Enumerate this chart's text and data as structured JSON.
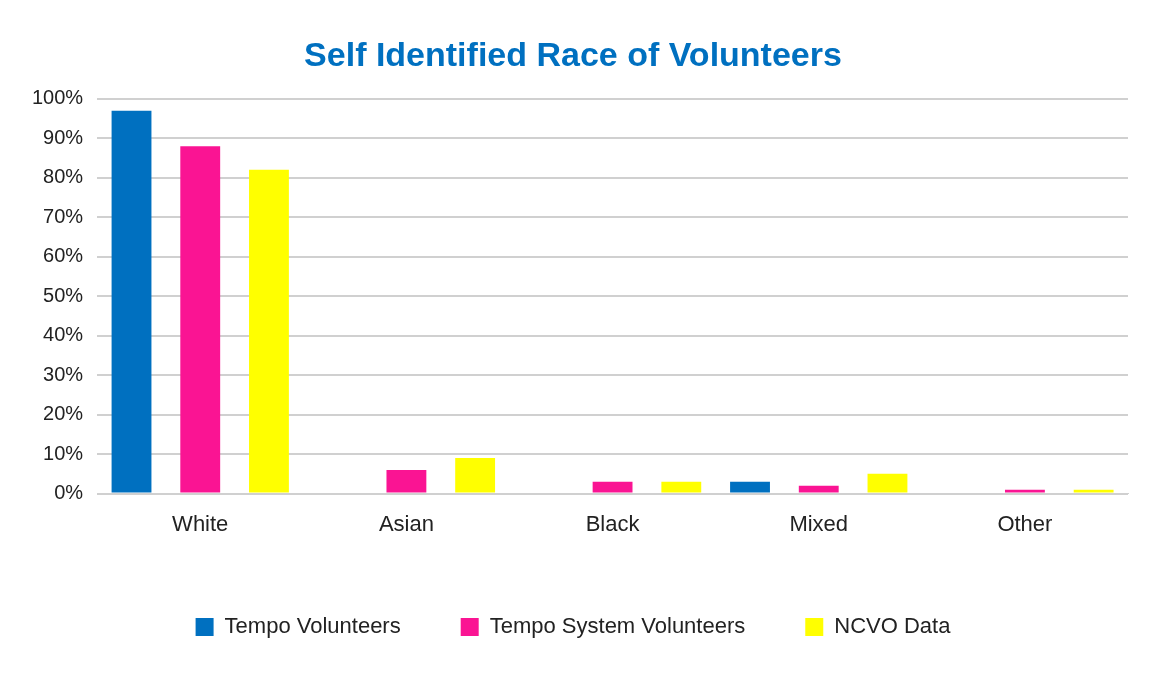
{
  "chart_data": {
    "type": "bar",
    "title": "Self Identified Race of Volunteers",
    "categories": [
      "White",
      "Asian",
      "Black",
      "Mixed",
      "Other"
    ],
    "series": [
      {
        "name": "Tempo Volunteers",
        "color": "#0070c0",
        "values": [
          97,
          0,
          0,
          3,
          0
        ]
      },
      {
        "name": "Tempo System Volunteers",
        "color": "#fa1493",
        "values": [
          88,
          6,
          3,
          2,
          1
        ]
      },
      {
        "name": "NCVO Data",
        "color": "#ffff00",
        "values": [
          82,
          9,
          3,
          5,
          1
        ]
      }
    ],
    "ylim": [
      0,
      100
    ],
    "yticks": [
      {
        "value": 0,
        "label": "0%"
      },
      {
        "value": 10,
        "label": "10%"
      },
      {
        "value": 20,
        "label": "20%"
      },
      {
        "value": 30,
        "label": "30%"
      },
      {
        "value": 40,
        "label": "40%"
      },
      {
        "value": 50,
        "label": "50%"
      },
      {
        "value": 60,
        "label": "60%"
      },
      {
        "value": 70,
        "label": "70%"
      },
      {
        "value": 80,
        "label": "80%"
      },
      {
        "value": 90,
        "label": "90%"
      },
      {
        "value": 100,
        "label": "100%"
      }
    ],
    "grid": "y",
    "legend": "bottom"
  }
}
